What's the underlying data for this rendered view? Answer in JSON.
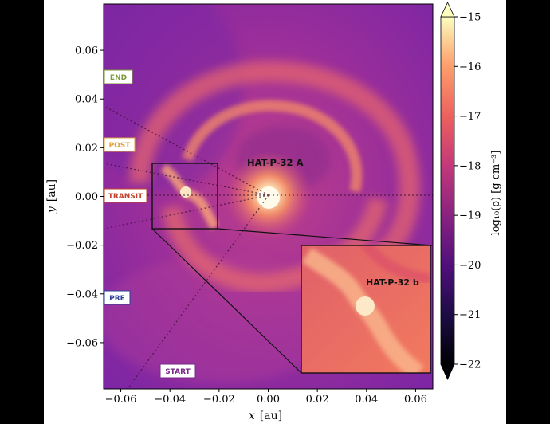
{
  "figure": {
    "target_labels": [
      {
        "id": "end",
        "text": "END",
        "color": "#7c9a3a"
      },
      {
        "id": "post",
        "text": "POST",
        "color": "#e0a23a"
      },
      {
        "id": "transit",
        "text": "TRANSIT",
        "color": "#c0432b"
      },
      {
        "id": "pre",
        "text": "PRE",
        "color": "#2a3f9c"
      },
      {
        "id": "start",
        "text": "START",
        "color": "#7a2a8a"
      }
    ],
    "star_label": "HAT-P-32 A",
    "planet_label": "HAT-P-32 b",
    "x_axis": {
      "label": "x",
      "unit": "[au]",
      "ticks": [
        "−0.06",
        "−0.04",
        "−0.02",
        "0.00",
        "0.02",
        "0.04",
        "0.06"
      ],
      "tick_values": [
        -0.06,
        -0.04,
        -0.02,
        0.0,
        0.02,
        0.04,
        0.06
      ],
      "range": [
        -0.067,
        0.067
      ]
    },
    "y_axis": {
      "label": "y",
      "unit": "[au]",
      "ticks": [
        "0.06",
        "0.04",
        "0.02",
        "0.00",
        "−0.02",
        "−0.04",
        "−0.06"
      ],
      "tick_values": [
        0.06,
        0.04,
        0.02,
        0.0,
        -0.02,
        -0.04,
        -0.06
      ],
      "range": [
        -0.079,
        0.079
      ]
    },
    "colorbar": {
      "label": "log₁₀(ρ)  [g cm⁻³]",
      "ticks": [
        "−15",
        "−16",
        "−17",
        "−18",
        "−19",
        "−20",
        "−21",
        "−22"
      ],
      "tick_values": [
        -15,
        -16,
        -17,
        -18,
        -19,
        -20,
        -21,
        -22
      ],
      "range": [
        -22,
        -15
      ],
      "colors": [
        "#000004",
        "#2b0b57",
        "#6a1b8a",
        "#a8327d",
        "#e0546a",
        "#f8884a",
        "#fdc38a",
        "#fcfdbf"
      ]
    }
  }
}
